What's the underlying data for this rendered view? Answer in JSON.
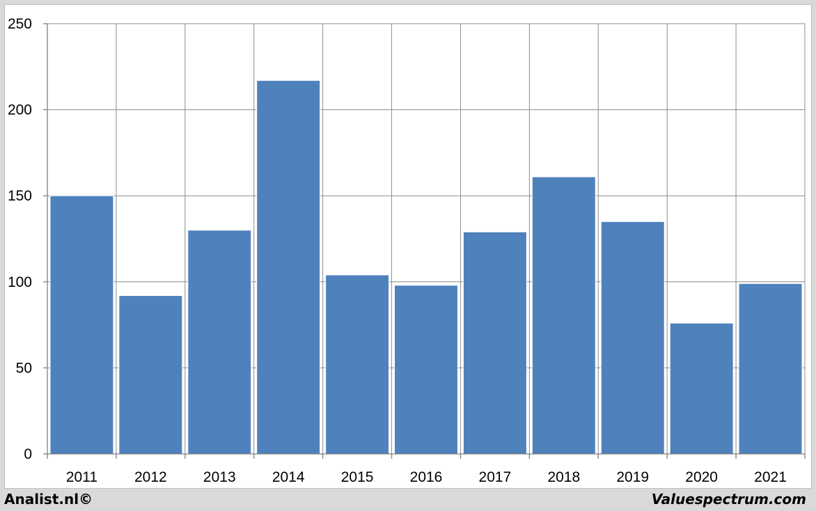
{
  "chart_data": {
    "type": "bar",
    "categories": [
      "2011",
      "2012",
      "2013",
      "2014",
      "2015",
      "2016",
      "2017",
      "2018",
      "2019",
      "2020",
      "2021"
    ],
    "values": [
      150,
      92,
      130,
      217,
      104,
      98,
      129,
      161,
      135,
      76,
      99
    ],
    "ylim": [
      0,
      250
    ],
    "yticks": [
      0,
      50,
      100,
      150,
      200,
      250
    ],
    "grid": true,
    "bar_color": "#4f81bd",
    "title": "",
    "xlabel": "",
    "ylabel": ""
  },
  "footer": {
    "left": "Analist.nl©",
    "right": "Valuespectrum.com"
  }
}
